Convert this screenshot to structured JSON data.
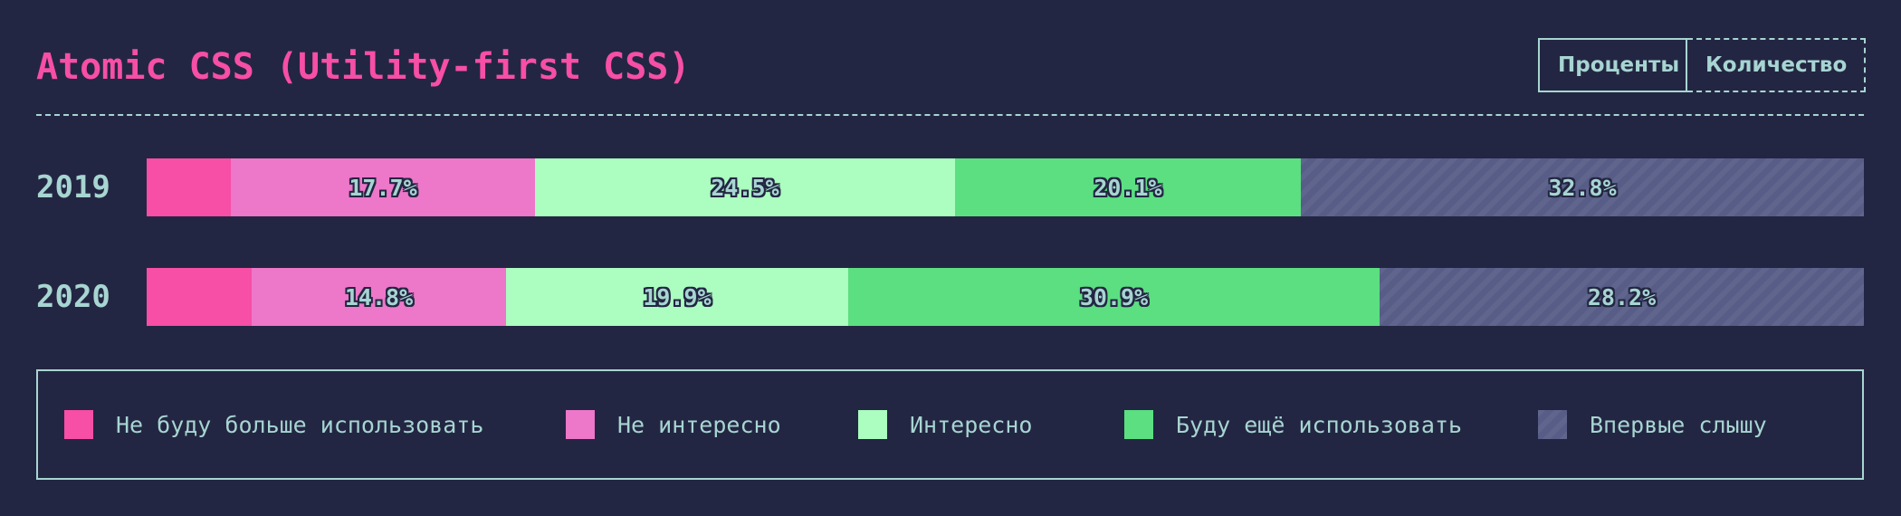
{
  "chart_data": {
    "type": "bar",
    "orientation": "horizontal",
    "stacked": true,
    "title": "Atomic CSS (Utility-first CSS)",
    "categories": [
      "2019",
      "2020"
    ],
    "series": [
      {
        "name": "Не буду больше использовать",
        "color": "#f74ea6",
        "values": [
          4.9,
          6.1
        ],
        "labels": [
          "",
          ""
        ]
      },
      {
        "name": "Не интересно",
        "color": "#ed77c9",
        "values": [
          17.7,
          14.8
        ],
        "labels": [
          "17.7%",
          "14.8%"
        ]
      },
      {
        "name": "Интересно",
        "color": "#abfdc0",
        "values": [
          24.5,
          19.9
        ],
        "labels": [
          "24.5%",
          "19.9%"
        ]
      },
      {
        "name": "Буду ещё использовать",
        "color": "#5bdf81",
        "values": [
          20.1,
          30.9
        ],
        "labels": [
          "20.1%",
          "30.9%"
        ]
      },
      {
        "name": "Впервые слышу",
        "color": "#585d87",
        "values": [
          32.8,
          28.2
        ],
        "labels": [
          "32.8%",
          "28.2%"
        ],
        "pattern": "diagonal-stripes"
      }
    ],
    "value_unit": "%",
    "xlim": [
      0,
      100
    ],
    "grid": false,
    "legend_position": "bottom"
  },
  "toggle": {
    "percent_label": "Проценты",
    "count_label": "Количество",
    "active": "percent"
  },
  "colors": {
    "background": "#232642",
    "accent": "#f74ea6",
    "text": "#a7d5d2"
  }
}
